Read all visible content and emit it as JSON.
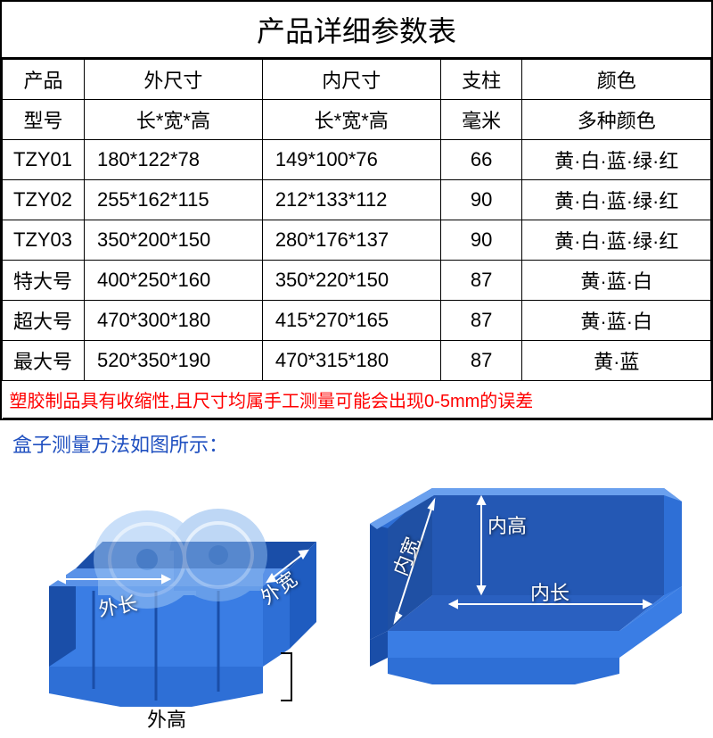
{
  "title": "产品详细参数表",
  "headers": {
    "product": "产品",
    "outer": "外尺寸",
    "inner": "内尺寸",
    "pillar": "支柱",
    "color": "颜色"
  },
  "subheaders": {
    "model": "型号",
    "lwh_outer": "长*宽*高",
    "lwh_inner": "长*宽*高",
    "mm": "毫米",
    "multi_color": "多种颜色"
  },
  "rows": [
    {
      "model": "TZY01",
      "outer": "180*122*78",
      "inner": "149*100*76",
      "pillar": "66",
      "color": "黄·白·蓝·绿·红"
    },
    {
      "model": "TZY02",
      "outer": "255*162*115",
      "inner": "212*133*112",
      "pillar": "90",
      "color": "黄·白·蓝·绿·红"
    },
    {
      "model": "TZY03",
      "outer": "350*200*150",
      "inner": "280*176*137",
      "pillar": "90",
      "color": "黄·白·蓝·绿·红"
    },
    {
      "model": "特大号",
      "outer": "400*250*160",
      "inner": "350*220*150",
      "pillar": "87",
      "color": "黄·蓝·白"
    },
    {
      "model": "超大号",
      "outer": "470*300*180",
      "inner": "415*270*165",
      "pillar": "87",
      "color": "黄·蓝·白"
    },
    {
      "model": "最大号",
      "outer": "520*350*190",
      "inner": "470*315*180",
      "pillar": "87",
      "color": "黄·蓝"
    }
  ],
  "note": "塑胶制品具有收缩性,且尺寸均属手工测量可能会出现0-5mm的误差",
  "measure_caption": "盒子测量方法如图所示：",
  "labels": {
    "outer_length": "外长",
    "outer_width": "外宽",
    "outer_height": "外高",
    "inner_length": "内长",
    "inner_width": "内宽",
    "inner_height": "内高"
  },
  "colors": {
    "note_text": "#ff0000",
    "caption_text": "#2050c0",
    "box_fill": "#2e6fd6",
    "box_dark": "#1a4ea8",
    "box_light": "#5a92e8",
    "border": "#000000",
    "label_white": "#ffffff"
  },
  "col_widths": [
    "90",
    "180",
    "180",
    "90",
    "200"
  ]
}
